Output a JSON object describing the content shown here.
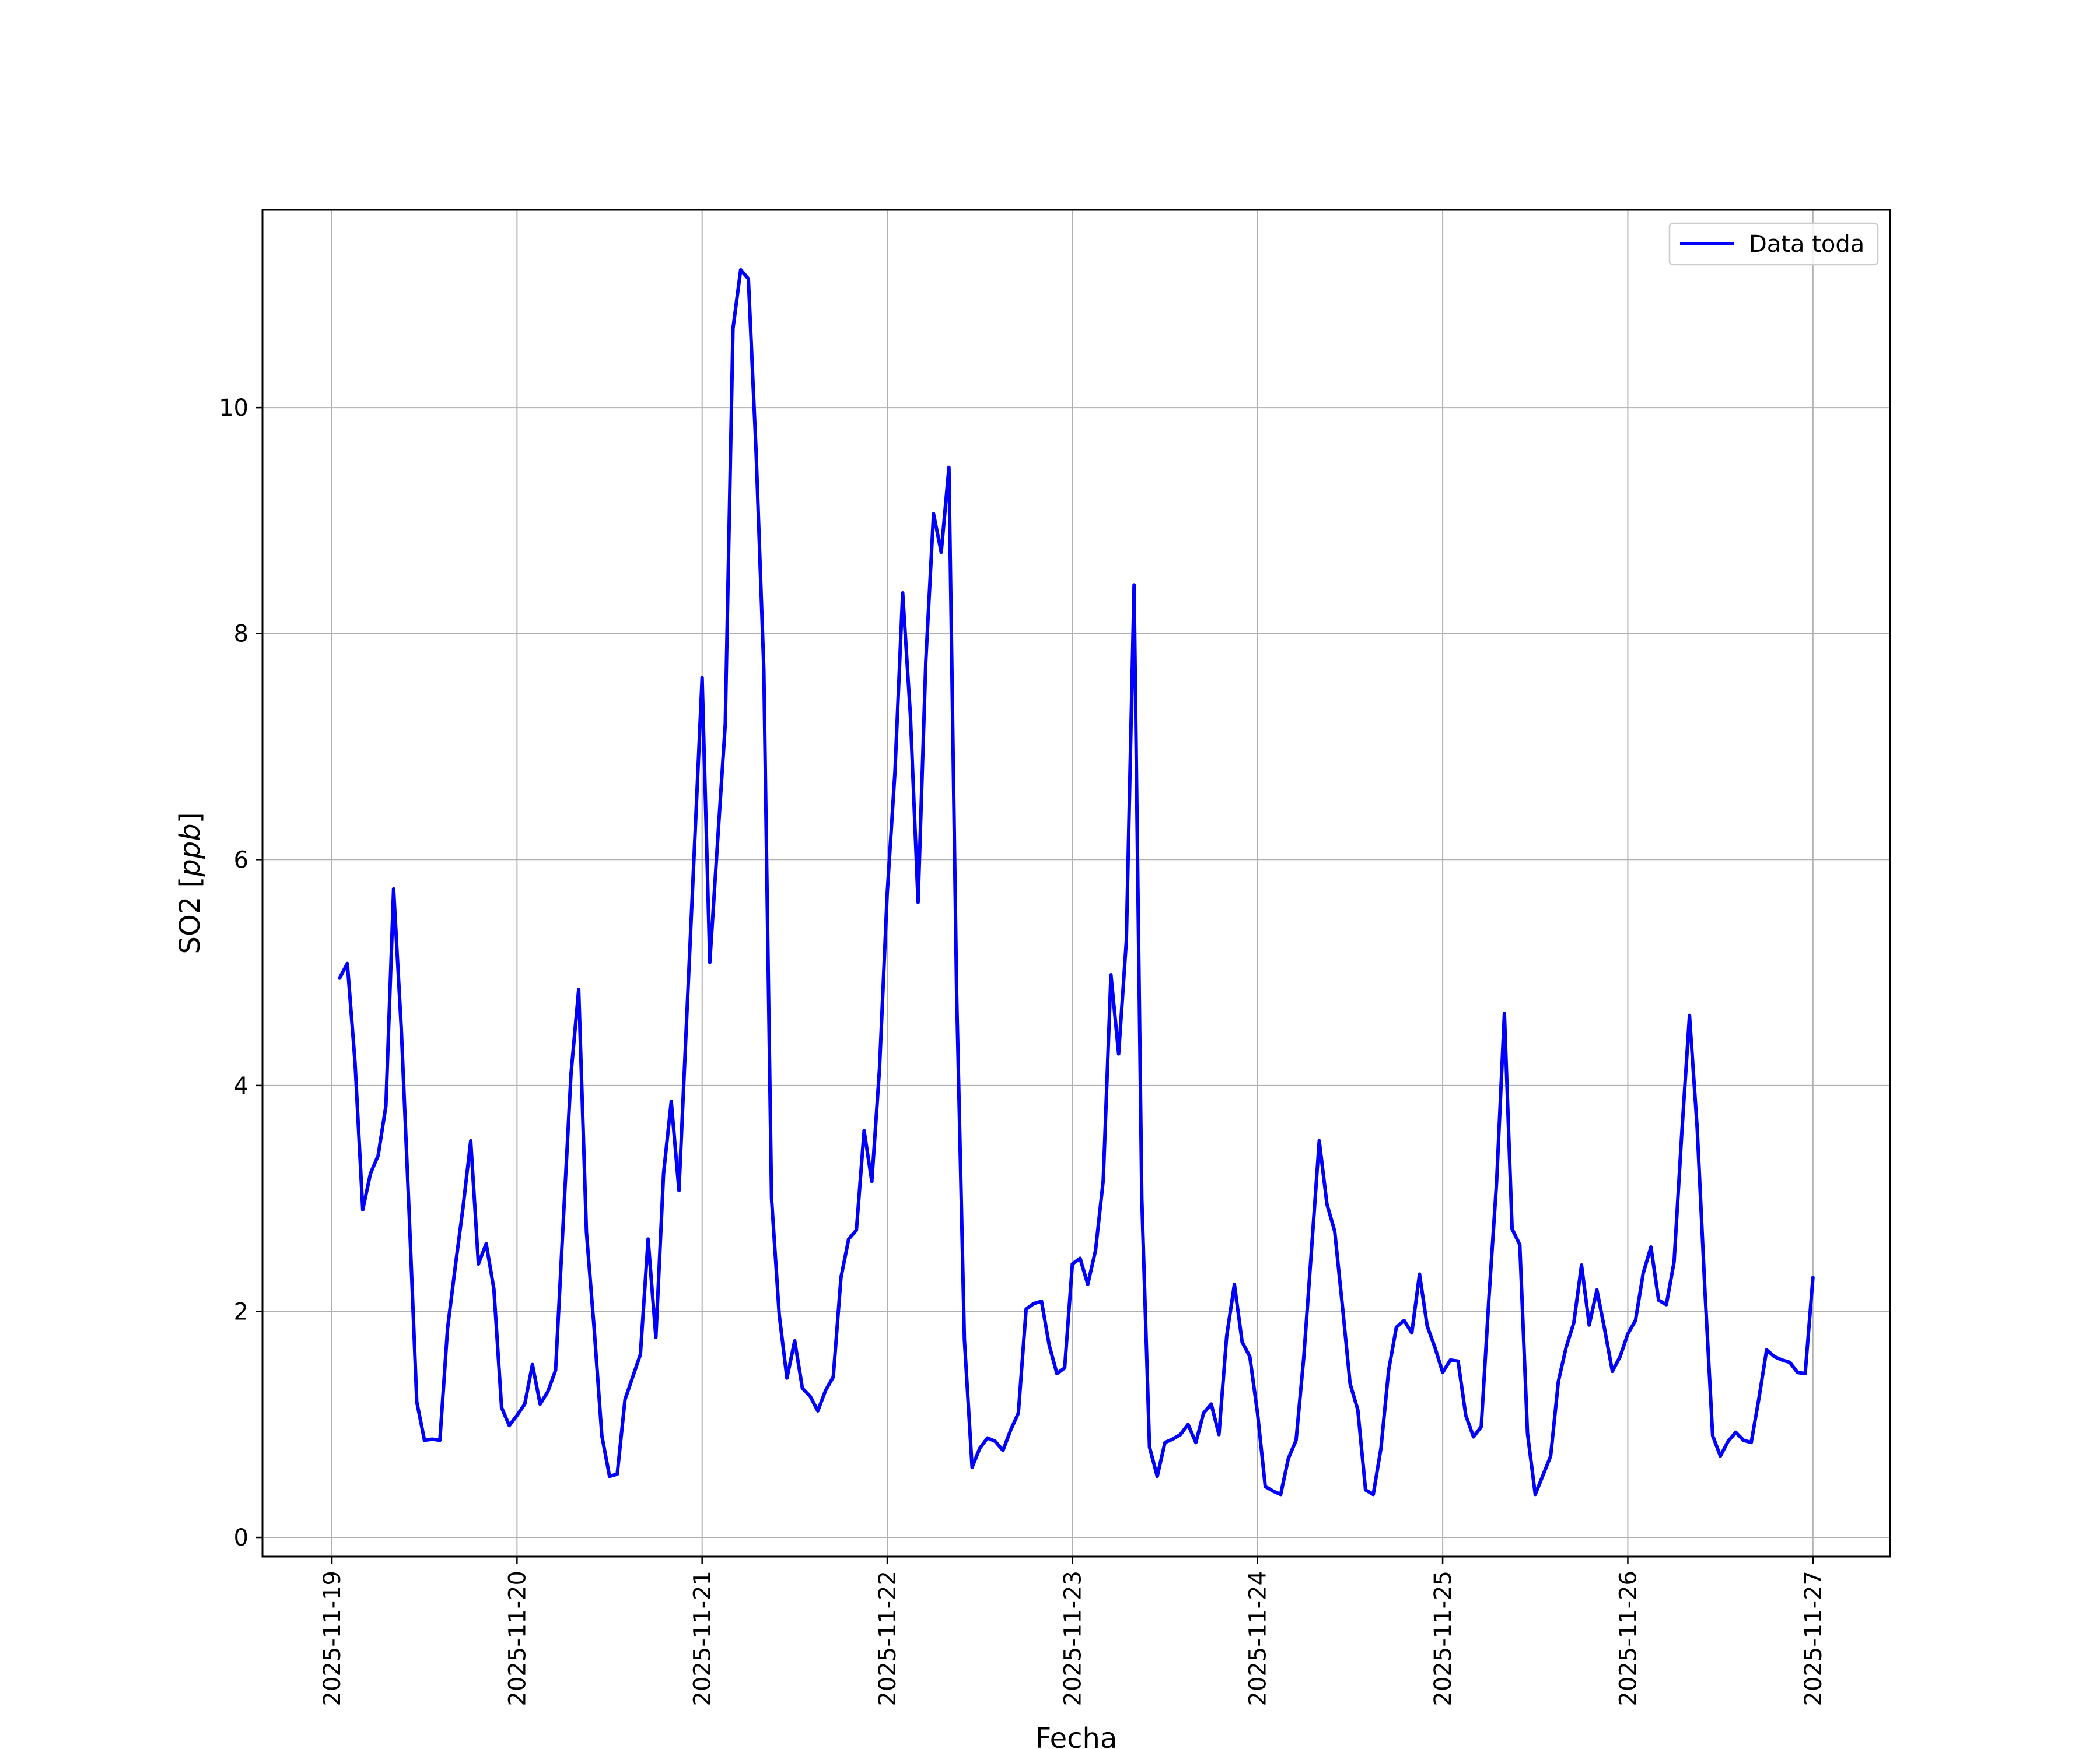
{
  "chart_data": {
    "type": "line",
    "xlabel": "Fecha",
    "ylabel": "SO2 [ppb]",
    "ylabel_main": "SO2 [",
    "ylabel_unit": "ppb",
    "ylabel_close": "]",
    "xlim": [
      "2025-11-18 15:00",
      "2025-11-27 10:00"
    ],
    "ylim": [
      -0.17,
      11.75
    ],
    "x_ticks": [
      "2025-11-19",
      "2025-11-20",
      "2025-11-21",
      "2025-11-22",
      "2025-11-23",
      "2025-11-24",
      "2025-11-25",
      "2025-11-26",
      "2025-11-27"
    ],
    "y_ticks": [
      0,
      2,
      4,
      6,
      8,
      10
    ],
    "grid": true,
    "legend_position": "top-right",
    "series": [
      {
        "name": "Data toda",
        "color": "#0000ff",
        "x": [
          "2025-11-19 01:00",
          "2025-11-19 02:00",
          "2025-11-19 03:00",
          "2025-11-19 04:00",
          "2025-11-19 05:00",
          "2025-11-19 06:00",
          "2025-11-19 07:00",
          "2025-11-19 08:00",
          "2025-11-19 09:00",
          "2025-11-19 10:00",
          "2025-11-19 11:00",
          "2025-11-19 12:00",
          "2025-11-19 13:00",
          "2025-11-19 14:00",
          "2025-11-19 15:00",
          "2025-11-19 16:00",
          "2025-11-19 17:00",
          "2025-11-19 18:00",
          "2025-11-19 19:00",
          "2025-11-19 20:00",
          "2025-11-19 21:00",
          "2025-11-19 22:00",
          "2025-11-19 23:00",
          "2025-11-20 00:00",
          "2025-11-20 01:00",
          "2025-11-20 02:00",
          "2025-11-20 03:00",
          "2025-11-20 04:00",
          "2025-11-20 05:00",
          "2025-11-20 06:00",
          "2025-11-20 07:00",
          "2025-11-20 08:00",
          "2025-11-20 09:00",
          "2025-11-20 10:00",
          "2025-11-20 11:00",
          "2025-11-20 12:00",
          "2025-11-20 13:00",
          "2025-11-20 14:00",
          "2025-11-20 15:00",
          "2025-11-20 16:00",
          "2025-11-20 17:00",
          "2025-11-20 18:00",
          "2025-11-20 19:00",
          "2025-11-20 20:00",
          "2025-11-20 21:00",
          "2025-11-20 22:00",
          "2025-11-20 23:00",
          "2025-11-21 00:00",
          "2025-11-21 01:00",
          "2025-11-21 02:00",
          "2025-11-21 03:00",
          "2025-11-21 04:00",
          "2025-11-21 05:00",
          "2025-11-21 06:00",
          "2025-11-21 07:00",
          "2025-11-21 08:00",
          "2025-11-21 09:00",
          "2025-11-21 10:00",
          "2025-11-21 11:00",
          "2025-11-21 12:00",
          "2025-11-21 13:00",
          "2025-11-21 14:00",
          "2025-11-21 15:00",
          "2025-11-21 16:00",
          "2025-11-21 17:00",
          "2025-11-21 18:00",
          "2025-11-21 19:00",
          "2025-11-21 20:00",
          "2025-11-21 21:00",
          "2025-11-21 22:00",
          "2025-11-21 23:00",
          "2025-11-22 00:00",
          "2025-11-22 01:00",
          "2025-11-22 02:00",
          "2025-11-22 03:00",
          "2025-11-22 04:00",
          "2025-11-22 05:00",
          "2025-11-22 06:00",
          "2025-11-22 07:00",
          "2025-11-22 08:00",
          "2025-11-22 09:00",
          "2025-11-22 10:00",
          "2025-11-22 11:00",
          "2025-11-22 12:00",
          "2025-11-22 13:00",
          "2025-11-22 14:00",
          "2025-11-22 15:00",
          "2025-11-22 16:00",
          "2025-11-22 17:00",
          "2025-11-22 18:00",
          "2025-11-22 19:00",
          "2025-11-22 20:00",
          "2025-11-22 21:00",
          "2025-11-22 22:00",
          "2025-11-22 23:00",
          "2025-11-23 00:00",
          "2025-11-23 01:00",
          "2025-11-23 02:00",
          "2025-11-23 03:00",
          "2025-11-23 04:00",
          "2025-11-23 05:00",
          "2025-11-23 06:00",
          "2025-11-23 07:00",
          "2025-11-23 08:00",
          "2025-11-23 09:00",
          "2025-11-23 10:00",
          "2025-11-23 11:00",
          "2025-11-23 12:00",
          "2025-11-23 13:00",
          "2025-11-23 14:00",
          "2025-11-23 15:00",
          "2025-11-23 16:00",
          "2025-11-23 17:00",
          "2025-11-23 18:00",
          "2025-11-23 19:00",
          "2025-11-23 20:00",
          "2025-11-23 21:00",
          "2025-11-23 22:00",
          "2025-11-23 23:00",
          "2025-11-24 00:00",
          "2025-11-24 01:00",
          "2025-11-24 02:00",
          "2025-11-24 03:00",
          "2025-11-24 04:00",
          "2025-11-24 05:00",
          "2025-11-24 06:00",
          "2025-11-24 07:00",
          "2025-11-24 08:00",
          "2025-11-24 09:00",
          "2025-11-24 10:00",
          "2025-11-24 11:00",
          "2025-11-24 12:00",
          "2025-11-24 13:00",
          "2025-11-24 14:00",
          "2025-11-24 15:00",
          "2025-11-24 16:00",
          "2025-11-24 17:00",
          "2025-11-24 18:00",
          "2025-11-24 19:00",
          "2025-11-24 20:00",
          "2025-11-24 21:00",
          "2025-11-24 22:00",
          "2025-11-24 23:00",
          "2025-11-25 00:00",
          "2025-11-25 01:00",
          "2025-11-25 02:00",
          "2025-11-25 03:00",
          "2025-11-25 04:00",
          "2025-11-25 05:00",
          "2025-11-25 06:00",
          "2025-11-25 07:00",
          "2025-11-25 08:00",
          "2025-11-25 09:00",
          "2025-11-25 10:00",
          "2025-11-25 11:00",
          "2025-11-25 12:00",
          "2025-11-25 13:00",
          "2025-11-25 14:00",
          "2025-11-25 15:00",
          "2025-11-25 16:00",
          "2025-11-25 17:00",
          "2025-11-25 18:00",
          "2025-11-25 19:00",
          "2025-11-25 20:00",
          "2025-11-25 21:00",
          "2025-11-25 22:00",
          "2025-11-25 23:00",
          "2025-11-26 00:00",
          "2025-11-26 01:00",
          "2025-11-26 02:00",
          "2025-11-26 03:00",
          "2025-11-26 04:00",
          "2025-11-26 05:00",
          "2025-11-26 06:00",
          "2025-11-26 07:00",
          "2025-11-26 08:00",
          "2025-11-26 09:00",
          "2025-11-26 10:00",
          "2025-11-26 11:00",
          "2025-11-26 12:00",
          "2025-11-26 13:00",
          "2025-11-26 14:00",
          "2025-11-26 15:00",
          "2025-11-26 16:00",
          "2025-11-26 17:00",
          "2025-11-26 18:00",
          "2025-11-26 19:00",
          "2025-11-26 20:00",
          "2025-11-26 21:00",
          "2025-11-26 22:00",
          "2025-11-26 23:00",
          "2025-11-27 00:00"
        ],
        "y": [
          4.95,
          5.08,
          4.2,
          2.9,
          3.22,
          3.38,
          3.82,
          5.74,
          4.5,
          2.9,
          1.2,
          0.86,
          0.87,
          0.86,
          1.85,
          2.4,
          2.92,
          3.51,
          2.42,
          2.6,
          2.2,
          1.15,
          0.99,
          1.08,
          1.18,
          1.53,
          1.18,
          1.29,
          1.48,
          2.8,
          4.1,
          4.85,
          2.7,
          1.85,
          0.9,
          0.54,
          0.56,
          1.22,
          1.42,
          1.62,
          2.64,
          1.77,
          3.22,
          3.86,
          3.07,
          4.6,
          6.1,
          7.61,
          5.09,
          6.15,
          7.2,
          10.7,
          11.22,
          11.14,
          9.6,
          7.68,
          3.0,
          1.97,
          1.41,
          1.74,
          1.32,
          1.25,
          1.12,
          1.3,
          1.42,
          2.3,
          2.64,
          2.72,
          3.6,
          3.15,
          4.15,
          5.7,
          6.78,
          8.36,
          7.28,
          5.62,
          7.76,
          9.06,
          8.72,
          9.47,
          4.82,
          1.75,
          0.62,
          0.79,
          0.88,
          0.85,
          0.77,
          0.95,
          1.1,
          2.02,
          2.07,
          2.09,
          1.7,
          1.45,
          1.5,
          2.42,
          2.47,
          2.24,
          2.54,
          3.16,
          4.98,
          4.28,
          5.28,
          8.43,
          3.0,
          0.8,
          0.54,
          0.84,
          0.87,
          0.91,
          1.0,
          0.84,
          1.1,
          1.18,
          0.91,
          1.78,
          2.24,
          1.73,
          1.6,
          1.1,
          0.45,
          0.41,
          0.38,
          0.7,
          0.86,
          1.6,
          2.55,
          3.51,
          2.95,
          2.71,
          2.05,
          1.36,
          1.13,
          0.42,
          0.38,
          0.79,
          1.48,
          1.86,
          1.92,
          1.81,
          2.33,
          1.87,
          1.68,
          1.46,
          1.57,
          1.56,
          1.08,
          0.89,
          0.98,
          2.12,
          3.15,
          4.64,
          2.73,
          2.59,
          0.92,
          0.38,
          0.55,
          0.72,
          1.38,
          1.68,
          1.9,
          2.41,
          1.88,
          2.19,
          1.84,
          1.47,
          1.6,
          1.8,
          1.92,
          2.34,
          2.57,
          2.1,
          2.06,
          2.44,
          3.58,
          4.62,
          3.62,
          2.18,
          0.9,
          0.72,
          0.85,
          0.93,
          0.86,
          0.84,
          1.23,
          1.66,
          1.6,
          1.57,
          1.55,
          1.46,
          1.45,
          2.3
        ]
      }
    ]
  }
}
